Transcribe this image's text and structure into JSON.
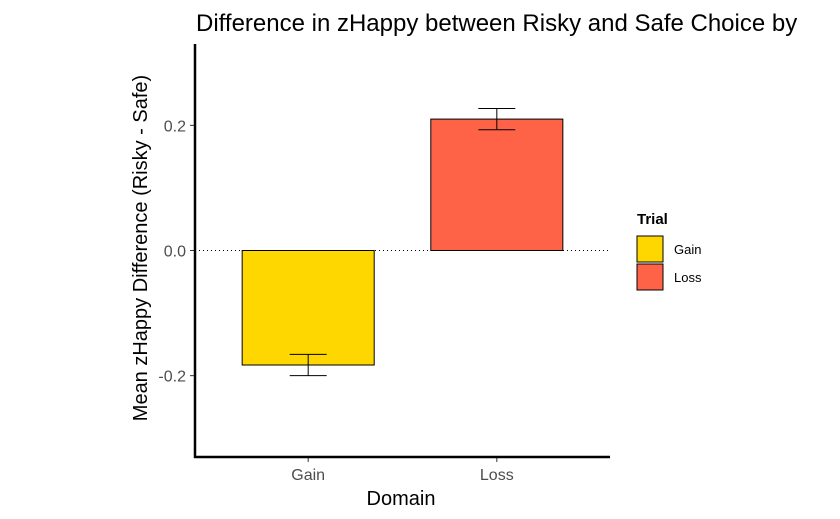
{
  "chart_data": {
    "type": "bar",
    "title": "Difference in zHappy between Risky and Safe Choice by",
    "xlabel": "Domain",
    "ylabel": "Mean zHappy Difference (Risky - Safe)",
    "categories": [
      "Gain",
      "Loss"
    ],
    "values": [
      -0.183,
      0.21
    ],
    "error_low": [
      -0.2,
      0.193
    ],
    "error_high": [
      -0.166,
      0.227
    ],
    "colors": [
      "#FFD700",
      "#FF6347"
    ],
    "ylim": [
      -0.33,
      0.33
    ],
    "yticks": [
      -0.2,
      0.0,
      0.2
    ],
    "ytick_labels": [
      "-0.2",
      "0.0",
      "0.2"
    ],
    "reference_line": 0,
    "grid": false,
    "legend": {
      "title": "Trial",
      "placement": "right",
      "items": [
        {
          "label": "Gain",
          "color": "#FFD700"
        },
        {
          "label": "Loss",
          "color": "#FF6347"
        }
      ]
    }
  }
}
